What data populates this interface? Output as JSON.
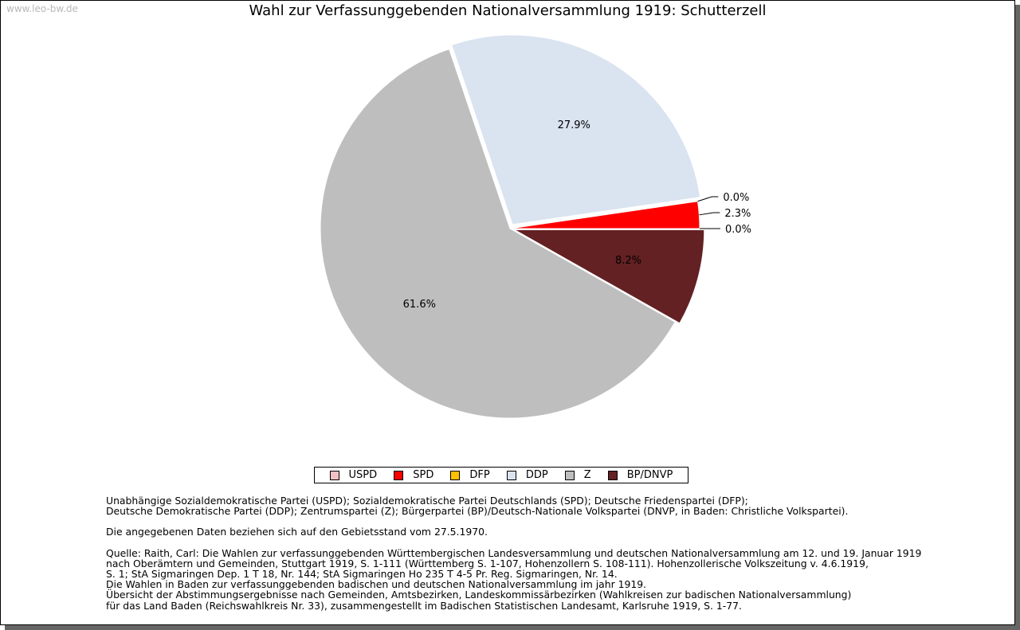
{
  "watermark": "www.leo-bw.de",
  "chart_data": {
    "type": "pie",
    "title": "Wahl zur Verfassunggebenden Nationalversammlung 1919: Schutterzell",
    "categories": [
      "USPD",
      "SPD",
      "DFP",
      "DDP",
      "Z",
      "BP/DNVP"
    ],
    "values": [
      0.0,
      2.3,
      0.0,
      27.9,
      61.6,
      8.2
    ],
    "labels": [
      "0.0%",
      "2.3%",
      "0.0%",
      "27.9%",
      "61.6%",
      "8.2%"
    ],
    "colors": [
      "#f2c2c2",
      "#ff0000",
      "#ffc000",
      "#dae3f0",
      "#bebebe",
      "#632123"
    ],
    "legend_position": "bottom"
  },
  "notes": {
    "parties_1": "Unabhängige Sozialdemokratische Partei (USPD); Sozialdemokratische Partei Deutschlands (SPD); Deutsche Friedenspartei (DFP);",
    "parties_2": "Deutsche Demokratische Partei (DDP); Zentrumspartei (Z); Bürgerpartei (BP)/Deutsch-Nationale Volkspartei (DNVP, in Baden: Christliche Volkspartei).",
    "territory": "Die angegebenen Daten beziehen sich auf den Gebietsstand vom 27.5.1970.",
    "source_1": "Quelle: Raith, Carl: Die Wahlen zur verfassunggebenden Württembergischen Landesversammlung und deutschen Nationalversammlung am 12. und 19. Januar 1919",
    "source_2": "nach Oberämtern und Gemeinden, Stuttgart 1919, S. 1-111 (Württemberg S. 1-107, Hohenzollern S. 108-111). Hohenzollerische Volkszeitung v. 4.6.1919,",
    "source_3": "S. 1; StA Sigmaringen Dep. 1 T 18, Nr. 144; StA Sigmaringen Ho 235 T 4-5 Pr. Reg. Sigmaringen, Nr. 14.",
    "source_4": "Die Wahlen in Baden zur verfassunggebenden badischen und deutschen Nationalversammlung im jahr 1919.",
    "source_5": "Übersicht der Abstimmungsergebnisse nach Gemeinden, Amtsbezirken, Landeskommissärbezirken (Wahlkreisen zur badischen Nationalversammlung)",
    "source_6": "für das Land Baden (Reichswahlkreis Nr. 33), zusammengestellt im Badischen Statistischen Landesamt, Karlsruhe 1919, S. 1-77."
  }
}
